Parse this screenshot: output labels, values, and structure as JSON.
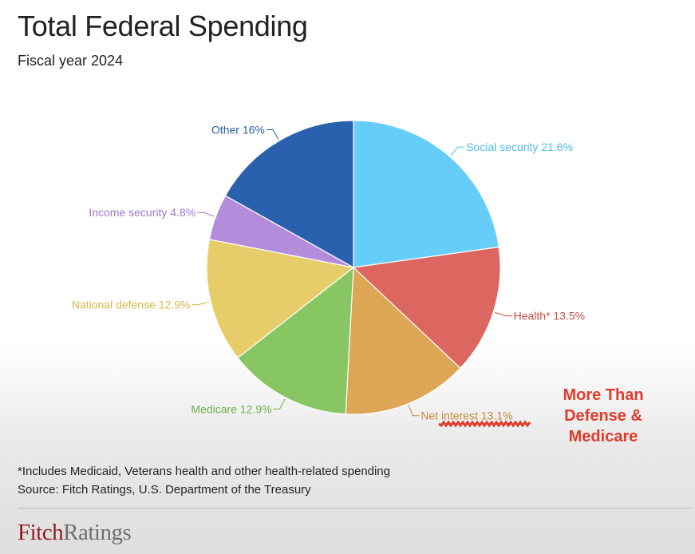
{
  "header": {
    "title": "Total Federal Spending",
    "subtitle": "Fiscal year 2024"
  },
  "chart_data": {
    "type": "pie",
    "title": "Total Federal Spending",
    "subtitle": "Fiscal year 2024",
    "slices": [
      {
        "label": "Social security 21.6%",
        "name": "Social security",
        "value": 21.6,
        "color": "#66ccf8",
        "label_color": "#4bbbee"
      },
      {
        "label": "Health* 13.5%",
        "name": "Health*",
        "value": 13.5,
        "color": "#dd6661",
        "label_color": "#c9504a"
      },
      {
        "label": "Net interest 13.1%",
        "name": "Net interest",
        "value": 13.1,
        "color": "#dda655",
        "label_color": "#c28a3a"
      },
      {
        "label": "Medicare 12.9%",
        "name": "Medicare",
        "value": 12.9,
        "color": "#88c663",
        "label_color": "#6fae4b"
      },
      {
        "label": "National defense 12.9%",
        "name": "National defense",
        "value": 12.9,
        "color": "#e7cd6a",
        "label_color": "#d8b94a"
      },
      {
        "label": "Income security 4.8%",
        "name": "Income security",
        "value": 4.8,
        "color": "#b48cdc",
        "label_color": "#a076cd"
      },
      {
        "label": "Other 16%",
        "name": "Other",
        "value": 16,
        "color": "#2a61ae",
        "label_color": "#2a61ae"
      }
    ]
  },
  "annotation": {
    "lines": [
      "More Than",
      "Defense &",
      "Medicare"
    ],
    "color": "#e03b2c"
  },
  "footer": {
    "footnote": "*Includes Medicaid, Veterans health and other health-related spending",
    "source": "Source: Fitch Ratings, U.S. Department of the Treasury",
    "brand_fitch": "Fitch",
    "brand_ratings": "Ratings"
  }
}
